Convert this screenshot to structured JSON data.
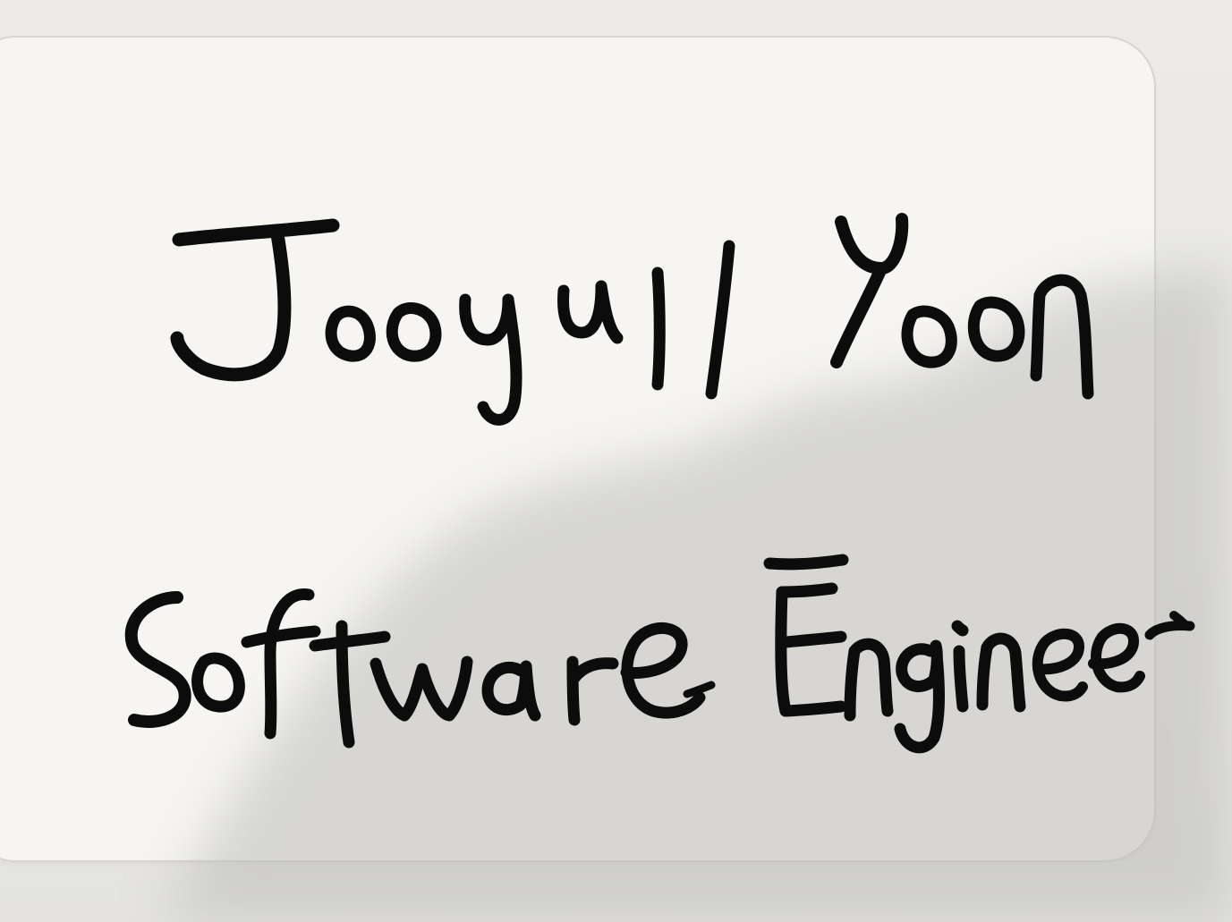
{
  "card": {
    "name": "Jooyul Yoon",
    "title": "Software Engineer"
  },
  "colors": {
    "ink": "#0c0c0c",
    "paper": "#f6f5f2",
    "background": "#e9e9e6",
    "shadow": "#c9c8c4"
  }
}
